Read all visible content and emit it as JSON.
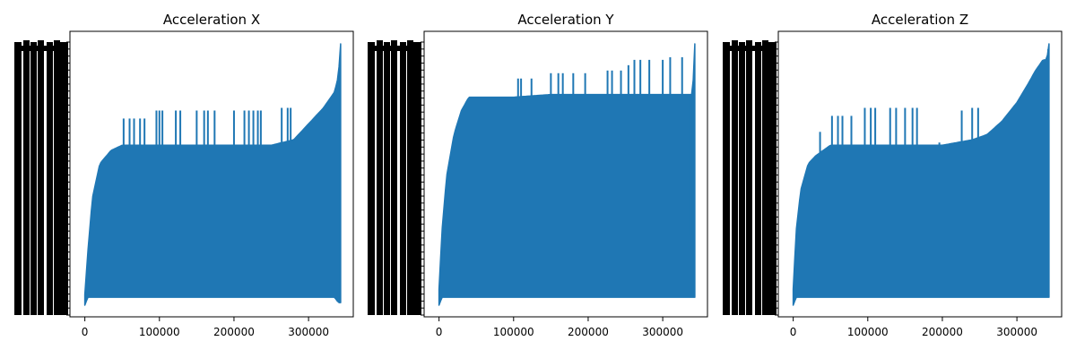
{
  "figure": {
    "background": "#ffffff",
    "line_color": "#1f77b4",
    "ink_color": "#000000"
  },
  "chart_data": [
    {
      "type": "line",
      "title": "Acceleration X",
      "xlabel": "",
      "ylabel": "",
      "x_ticks": [
        0,
        100000,
        200000,
        300000
      ],
      "x_tick_labels": [
        "0",
        "100000",
        "200000",
        "300000"
      ],
      "xlim": [
        -20000,
        360000
      ],
      "x_max": 343000,
      "grid": false,
      "y_tick_labels_legible": false,
      "series": [
        {
          "x": [
            0,
            4000,
            10000,
            20000,
            35000,
            50000,
            70000,
            100000,
            150000,
            200000,
            250000,
            280000,
            300000,
            320000,
            335000,
            340000,
            343000
          ],
          "upper": [
            0.06,
            0.22,
            0.42,
            0.55,
            0.6,
            0.62,
            0.62,
            0.62,
            0.62,
            0.62,
            0.62,
            0.64,
            0.7,
            0.76,
            0.82,
            0.88,
            1.0
          ],
          "lower": [
            0.02,
            0.05,
            0.05,
            0.05,
            0.05,
            0.05,
            0.05,
            0.05,
            0.05,
            0.05,
            0.05,
            0.05,
            0.05,
            0.05,
            0.05,
            0.03,
            0.03
          ],
          "spikes": [
            {
              "x": 52000,
              "v": 0.72
            },
            {
              "x": 60000,
              "v": 0.72
            },
            {
              "x": 66000,
              "v": 0.72
            },
            {
              "x": 74000,
              "v": 0.72
            },
            {
              "x": 80000,
              "v": 0.72
            },
            {
              "x": 96000,
              "v": 0.75
            },
            {
              "x": 100000,
              "v": 0.75
            },
            {
              "x": 104000,
              "v": 0.75
            },
            {
              "x": 122000,
              "v": 0.75
            },
            {
              "x": 128000,
              "v": 0.75
            },
            {
              "x": 150000,
              "v": 0.75
            },
            {
              "x": 160000,
              "v": 0.75
            },
            {
              "x": 165000,
              "v": 0.75
            },
            {
              "x": 174000,
              "v": 0.75
            },
            {
              "x": 200000,
              "v": 0.75
            },
            {
              "x": 214000,
              "v": 0.75
            },
            {
              "x": 220000,
              "v": 0.75
            },
            {
              "x": 226000,
              "v": 0.75
            },
            {
              "x": 232000,
              "v": 0.75
            },
            {
              "x": 236000,
              "v": 0.75
            },
            {
              "x": 264000,
              "v": 0.76
            },
            {
              "x": 272000,
              "v": 0.76
            },
            {
              "x": 276000,
              "v": 0.76
            }
          ]
        }
      ]
    },
    {
      "type": "line",
      "title": "Acceleration Y",
      "xlabel": "",
      "ylabel": "",
      "x_ticks": [
        0,
        100000,
        200000,
        300000
      ],
      "x_tick_labels": [
        "0",
        "100000",
        "200000",
        "300000"
      ],
      "xlim": [
        -20000,
        360000
      ],
      "x_max": 343000,
      "grid": false,
      "y_tick_labels_legible": false,
      "series": [
        {
          "x": [
            0,
            4000,
            10000,
            20000,
            30000,
            40000,
            50000,
            100000,
            150000,
            200000,
            250000,
            300000,
            330000,
            340000,
            343000
          ],
          "upper": [
            0.08,
            0.3,
            0.5,
            0.66,
            0.75,
            0.8,
            0.8,
            0.8,
            0.81,
            0.81,
            0.81,
            0.81,
            0.81,
            0.81,
            1.0
          ],
          "lower": [
            0.02,
            0.05,
            0.05,
            0.05,
            0.05,
            0.05,
            0.05,
            0.05,
            0.05,
            0.05,
            0.05,
            0.05,
            0.05,
            0.05,
            0.05
          ],
          "spikes": [
            {
              "x": 106000,
              "v": 0.87
            },
            {
              "x": 110000,
              "v": 0.87
            },
            {
              "x": 124000,
              "v": 0.87
            },
            {
              "x": 150000,
              "v": 0.89
            },
            {
              "x": 160000,
              "v": 0.89
            },
            {
              "x": 166000,
              "v": 0.89
            },
            {
              "x": 180000,
              "v": 0.89
            },
            {
              "x": 196000,
              "v": 0.89
            },
            {
              "x": 226000,
              "v": 0.9
            },
            {
              "x": 232000,
              "v": 0.9
            },
            {
              "x": 244000,
              "v": 0.9
            },
            {
              "x": 254000,
              "v": 0.92
            },
            {
              "x": 262000,
              "v": 0.94
            },
            {
              "x": 270000,
              "v": 0.94
            },
            {
              "x": 282000,
              "v": 0.94
            },
            {
              "x": 300000,
              "v": 0.94
            },
            {
              "x": 310000,
              "v": 0.95
            },
            {
              "x": 326000,
              "v": 0.95
            },
            {
              "x": 338000,
              "v": 0.28
            }
          ]
        }
      ]
    },
    {
      "type": "line",
      "title": "Acceleration Z",
      "xlabel": "",
      "ylabel": "",
      "x_ticks": [
        0,
        100000,
        200000,
        300000
      ],
      "x_tick_labels": [
        "0",
        "100000",
        "200000",
        "300000"
      ],
      "xlim": [
        -20000,
        360000
      ],
      "x_max": 343000,
      "grid": false,
      "y_tick_labels_legible": false,
      "series": [
        {
          "x": [
            0,
            4000,
            10000,
            20000,
            30000,
            40000,
            50000,
            100000,
            150000,
            200000,
            240000,
            260000,
            280000,
            300000,
            315000,
            325000,
            335000,
            340000,
            343000
          ],
          "upper": [
            0.08,
            0.3,
            0.45,
            0.55,
            0.58,
            0.6,
            0.62,
            0.62,
            0.62,
            0.62,
            0.64,
            0.66,
            0.71,
            0.78,
            0.85,
            0.9,
            0.94,
            0.94,
            1.0
          ],
          "lower": [
            0.02,
            0.05,
            0.05,
            0.05,
            0.05,
            0.05,
            0.05,
            0.05,
            0.05,
            0.05,
            0.05,
            0.05,
            0.05,
            0.05,
            0.05,
            0.05,
            0.05,
            0.05,
            0.05
          ],
          "spikes": [
            {
              "x": 36000,
              "v": 0.67
            },
            {
              "x": 52000,
              "v": 0.73
            },
            {
              "x": 60000,
              "v": 0.73
            },
            {
              "x": 66000,
              "v": 0.73
            },
            {
              "x": 78000,
              "v": 0.73
            },
            {
              "x": 96000,
              "v": 0.76
            },
            {
              "x": 104000,
              "v": 0.76
            },
            {
              "x": 110000,
              "v": 0.76
            },
            {
              "x": 130000,
              "v": 0.76
            },
            {
              "x": 138000,
              "v": 0.76
            },
            {
              "x": 150000,
              "v": 0.76
            },
            {
              "x": 160000,
              "v": 0.76
            },
            {
              "x": 166000,
              "v": 0.76
            },
            {
              "x": 196000,
              "v": 0.63
            },
            {
              "x": 208000,
              "v": 0.61
            },
            {
              "x": 226000,
              "v": 0.75
            },
            {
              "x": 240000,
              "v": 0.76
            },
            {
              "x": 248000,
              "v": 0.76
            },
            {
              "x": 342000,
              "v": 0.78
            }
          ]
        }
      ]
    }
  ]
}
